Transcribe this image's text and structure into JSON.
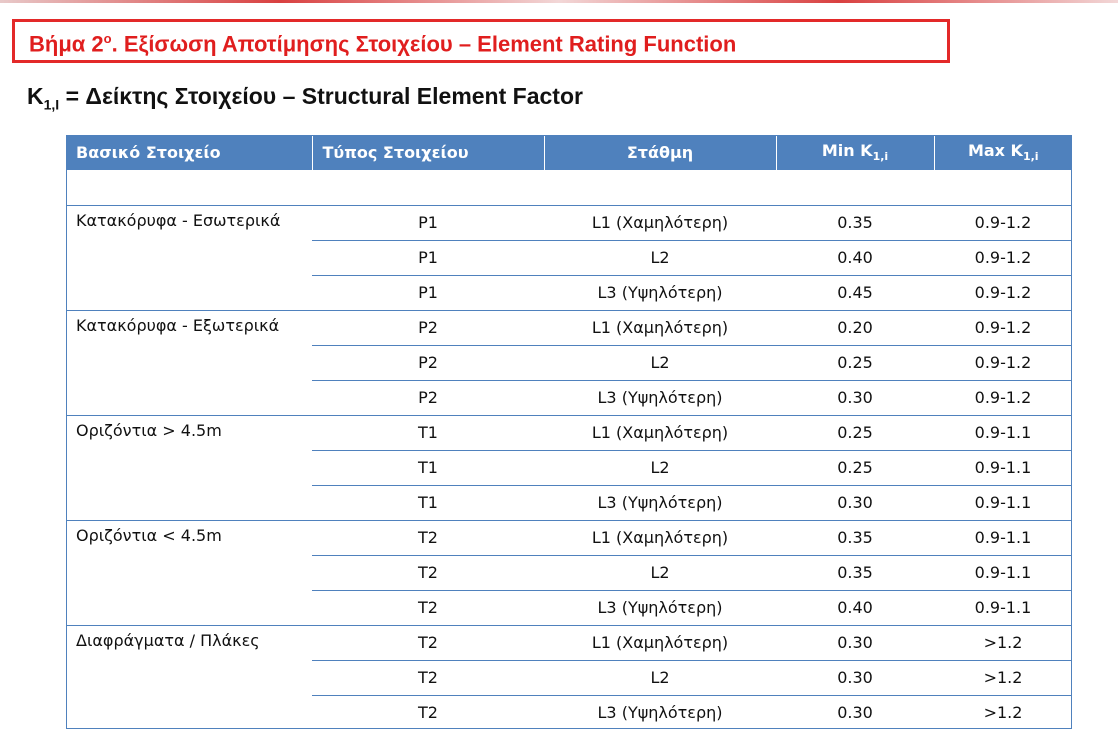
{
  "header": {
    "step_prefix": "Βήμα 2",
    "step_superscript": "ο",
    "step_suffix": ". Εξίσωση Αποτίμησης Στοιχείου – Element Rating Function"
  },
  "factor": {
    "symbol": "K",
    "subscript": "1,I",
    "text": " = Δείκτης Στοιχείου – Structural Element Factor"
  },
  "table": {
    "columns": {
      "element": "Βασικό Στοιχείο",
      "type": "Τύπος Στοιχείου",
      "level": "Στάθμη",
      "min_prefix": "Min K",
      "min_sub": "1,i",
      "max_prefix": "Max K",
      "max_sub": "1,i"
    },
    "groups": [
      {
        "name": "Κατακόρυφα - Εσωτερικά",
        "rows": [
          {
            "type": "P1",
            "level": "L1 (Χαμηλότερη)",
            "min": "0.35",
            "max": "0.9-1.2"
          },
          {
            "type": "P1",
            "level": "L2",
            "min": "0.40",
            "max": "0.9-1.2"
          },
          {
            "type": "P1",
            "level": "L3 (Υψηλότερη)",
            "min": "0.45",
            "max": "0.9-1.2"
          }
        ]
      },
      {
        "name": "Κατακόρυφα - Εξωτερικά",
        "rows": [
          {
            "type": "P2",
            "level": "L1 (Χαμηλότερη)",
            "min": "0.20",
            "max": "0.9-1.2"
          },
          {
            "type": "P2",
            "level": "L2",
            "min": "0.25",
            "max": "0.9-1.2"
          },
          {
            "type": "P2",
            "level": "L3 (Υψηλότερη)",
            "min": "0.30",
            "max": "0.9-1.2"
          }
        ]
      },
      {
        "name": "Οριζόντια > 4.5m",
        "rows": [
          {
            "type": "T1",
            "level": "L1 (Χαμηλότερη)",
            "min": "0.25",
            "max": "0.9-1.1"
          },
          {
            "type": "T1",
            "level": "L2",
            "min": "0.25",
            "max": "0.9-1.1"
          },
          {
            "type": "T1",
            "level": "L3 (Υψηλότερη)",
            "min": "0.30",
            "max": "0.9-1.1"
          }
        ]
      },
      {
        "name": "Οριζόντια < 4.5m",
        "rows": [
          {
            "type": "T2",
            "level": "L1 (Χαμηλότερη)",
            "min": "0.35",
            "max": "0.9-1.1"
          },
          {
            "type": "T2",
            "level": "L2",
            "min": "0.35",
            "max": "0.9-1.1"
          },
          {
            "type": "T2",
            "level": "L3 (Υψηλότερη)",
            "min": "0.40",
            "max": "0.9-1.1"
          }
        ]
      },
      {
        "name": "Διαφράγματα / Πλάκες",
        "rows": [
          {
            "type": "T2",
            "level": "L1 (Χαμηλότερη)",
            "min": "0.30",
            "max": ">1.2"
          },
          {
            "type": "T2",
            "level": "L2",
            "min": "0.30",
            "max": ">1.2"
          },
          {
            "type": "T2",
            "level": "L3 (Υψηλότερη)",
            "min": "0.30",
            "max": ">1.2"
          }
        ]
      }
    ]
  },
  "colors": {
    "accent_red": "#e01e1e",
    "header_blue": "#4f81bd"
  }
}
